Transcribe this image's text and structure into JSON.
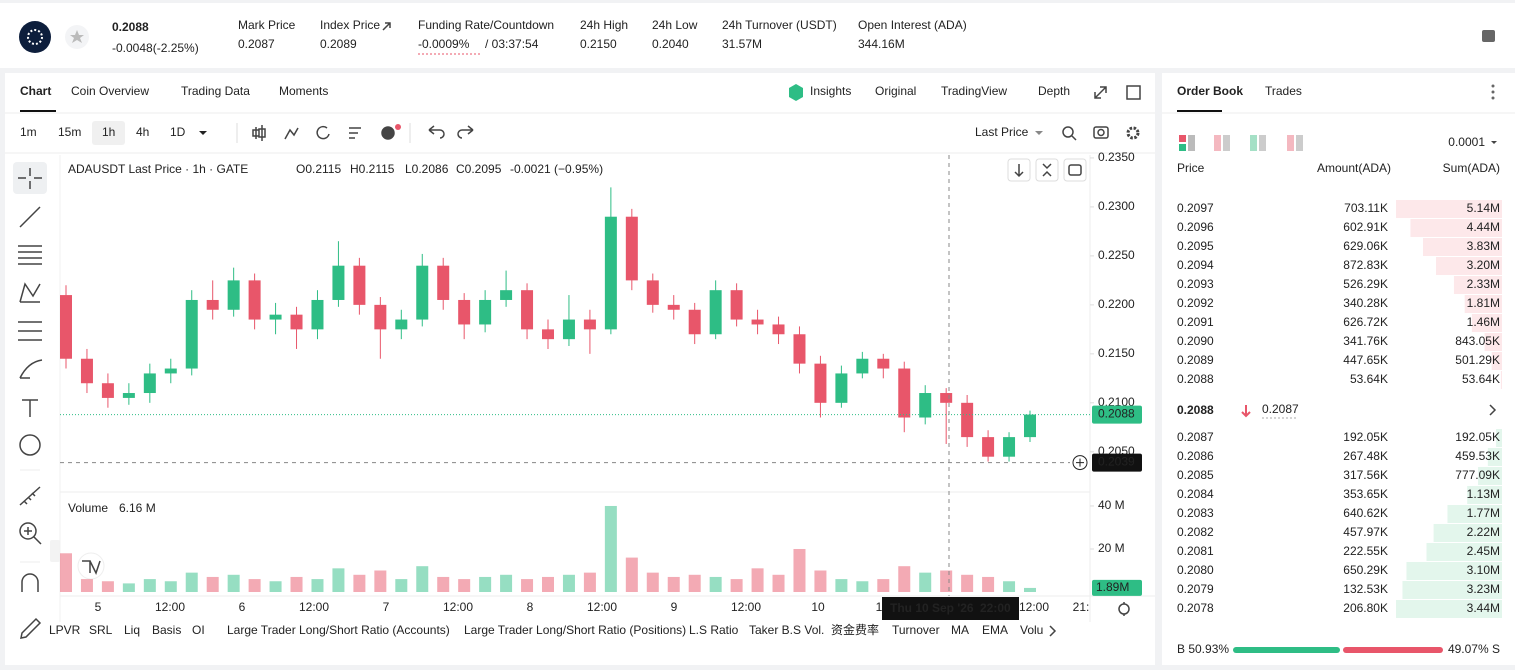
{
  "header": {
    "price": "0.2088",
    "change": "-0.0048(-2.25%)",
    "stats": [
      {
        "label": "Mark Price",
        "value": "0.2087"
      },
      {
        "label": "Index Price",
        "value": "0.2089"
      },
      {
        "label": "Funding Rate/Countdown",
        "value": "-0.0009%",
        "countdown": "/ 03:37:54"
      },
      {
        "label": "24h High",
        "value": "0.2150"
      },
      {
        "label": "24h Low",
        "value": "0.2040"
      },
      {
        "label": "24h Turnover (USDT)",
        "value": "31.57M"
      },
      {
        "label": "Open Interest (ADA)",
        "value": "344.16M"
      }
    ]
  },
  "chart_tabs": [
    "Chart",
    "Coin Overview",
    "Trading Data",
    "Moments"
  ],
  "view_tabs": [
    "Insights",
    "Original",
    "TradingView",
    "Depth"
  ],
  "intervals": [
    "1m",
    "15m",
    "1h",
    "4h",
    "1D"
  ],
  "price_type": "Last Price",
  "chart_data": {
    "type": "candlestick",
    "title": "ADAUSDT Last Price · 1h · GATE",
    "ohlc_legend": [
      "O0.2115",
      "H0.2115",
      "L0.2086",
      "C0.2095",
      "-0.0021 (−0.95%)"
    ],
    "up_color": "#2ebd85",
    "down_color": "#e8566a",
    "open": [
      0.221,
      0.2145,
      0.212,
      0.2105,
      0.211,
      0.213,
      0.2135,
      0.2205,
      0.2195,
      0.2225,
      0.2185,
      0.219,
      0.2175,
      0.2205,
      0.224,
      0.22,
      0.2175,
      0.2185,
      0.224,
      0.2205,
      0.218,
      0.2205,
      0.2215,
      0.2175,
      0.2165,
      0.2185,
      0.2175,
      0.229,
      0.2225,
      0.22,
      0.2195,
      0.217,
      0.2215,
      0.2185,
      0.218,
      0.217,
      0.214,
      0.21,
      0.213,
      0.2145,
      0.2135,
      0.2085,
      0.211,
      0.21,
      0.2065,
      0.2045,
      0.2065
    ],
    "high": [
      0.222,
      0.2155,
      0.213,
      0.212,
      0.214,
      0.2145,
      0.2215,
      0.2225,
      0.2238,
      0.2232,
      0.2202,
      0.2198,
      0.2215,
      0.2265,
      0.2248,
      0.2208,
      0.2195,
      0.2252,
      0.2248,
      0.2212,
      0.2215,
      0.2235,
      0.2222,
      0.2185,
      0.221,
      0.2195,
      0.232,
      0.2298,
      0.2232,
      0.221,
      0.2202,
      0.2225,
      0.2222,
      0.2195,
      0.2188,
      0.2178,
      0.2148,
      0.2138,
      0.2152,
      0.215,
      0.2142,
      0.2118,
      0.2115,
      0.2108,
      0.2072,
      0.207,
      0.2092
    ],
    "low": [
      0.2135,
      0.211,
      0.2095,
      0.2098,
      0.21,
      0.212,
      0.2128,
      0.2185,
      0.2188,
      0.2175,
      0.217,
      0.2155,
      0.2165,
      0.2198,
      0.219,
      0.2145,
      0.2165,
      0.2178,
      0.2195,
      0.2165,
      0.2172,
      0.2198,
      0.2165,
      0.2155,
      0.2158,
      0.215,
      0.217,
      0.2215,
      0.2192,
      0.2185,
      0.216,
      0.2165,
      0.2178,
      0.217,
      0.216,
      0.213,
      0.2085,
      0.2095,
      0.2125,
      0.2125,
      0.207,
      0.2078,
      0.2058,
      0.2055,
      0.204,
      0.204,
      0.206
    ],
    "close": [
      0.2145,
      0.212,
      0.2105,
      0.211,
      0.213,
      0.2135,
      0.2205,
      0.2195,
      0.2225,
      0.2185,
      0.219,
      0.2175,
      0.2205,
      0.224,
      0.22,
      0.2175,
      0.2185,
      0.224,
      0.2205,
      0.218,
      0.2205,
      0.2215,
      0.2175,
      0.2165,
      0.2185,
      0.2175,
      0.229,
      0.2225,
      0.22,
      0.2195,
      0.217,
      0.2215,
      0.2185,
      0.218,
      0.217,
      0.214,
      0.21,
      0.213,
      0.2145,
      0.2135,
      0.2085,
      0.211,
      0.21,
      0.2065,
      0.2045,
      0.2065,
      0.2088
    ],
    "volume": [
      18,
      6,
      5,
      4,
      6,
      5,
      9,
      7,
      8,
      6,
      5,
      7,
      6,
      11,
      8,
      10,
      6,
      12,
      7,
      6,
      7,
      8,
      6,
      7,
      8,
      9,
      40,
      16,
      9,
      7,
      8,
      7,
      6,
      11,
      8,
      20,
      10,
      6,
      5,
      6,
      12,
      9,
      10,
      8,
      7,
      5,
      1.89
    ],
    "ylim": [
      0.2011,
      0.2353
    ],
    "yticks": [
      {
        "value": 0.205,
        "label": "0.2050"
      },
      {
        "value": 0.21,
        "label": "0.2100"
      },
      {
        "value": 0.215,
        "label": "0.2150"
      },
      {
        "value": 0.22,
        "label": "0.2200"
      },
      {
        "value": 0.225,
        "label": "0.2250"
      },
      {
        "value": 0.23,
        "label": "0.2300"
      },
      {
        "value": 0.235,
        "label": "0.2350"
      }
    ],
    "volume_label": "Volume",
    "volume_value": "6.16 M",
    "last_volume_label": "1.89M",
    "vlim": [
      0,
      45.1
    ],
    "vticks": [
      {
        "value": 20,
        "label": "20 M"
      },
      {
        "value": 40,
        "label": "40 M"
      }
    ],
    "xtick_labels": [
      "5",
      "12:00",
      "6",
      "12:00",
      "7",
      "12:00",
      "8",
      "12:00",
      "9",
      "12:00",
      "10",
      "1",
      "12:00",
      "21:"
    ],
    "crosshair": {
      "value": 0.2039,
      "time": "Thu 10 Sep '26",
      "hour": "22:00"
    }
  },
  "indicators": [
    "LPVR",
    "SRL",
    "Liq",
    "Basis",
    "OI",
    "Large Trader Long/Short Ratio (Accounts)",
    "Large Trader Long/Short Ratio (Positions)",
    "L.S Ratio",
    "Taker B.S Vol.",
    "资金费率",
    "Turnover",
    "MA",
    "EMA",
    "Volu"
  ],
  "order_book": {
    "tabs": [
      "Order Book",
      "Trades"
    ],
    "tick_size": "0.0001",
    "headers": [
      "Price",
      "Amount(ADA)",
      "Sum(ADA)"
    ],
    "asks": [
      [
        "0.2097",
        "703.11K",
        "5.14M"
      ],
      [
        "0.2096",
        "602.91K",
        "4.44M"
      ],
      [
        "0.2095",
        "629.06K",
        "3.83M"
      ],
      [
        "0.2094",
        "872.83K",
        "3.20M"
      ],
      [
        "0.2093",
        "526.29K",
        "2.33M"
      ],
      [
        "0.2092",
        "340.28K",
        "1.81M"
      ],
      [
        "0.2091",
        "626.72K",
        "1.46M"
      ],
      [
        "0.2090",
        "341.76K",
        "843.05K"
      ],
      [
        "0.2089",
        "447.65K",
        "501.29K"
      ],
      [
        "0.2088",
        "53.64K",
        "53.64K"
      ]
    ],
    "mid_price": "0.2088",
    "mark_price": "0.2087",
    "bids": [
      [
        "0.2087",
        "192.05K",
        "192.05K"
      ],
      [
        "0.2086",
        "267.48K",
        "459.53K"
      ],
      [
        "0.2085",
        "317.56K",
        "777.09K"
      ],
      [
        "0.2084",
        "353.65K",
        "1.13M"
      ],
      [
        "0.2083",
        "640.62K",
        "1.77M"
      ],
      [
        "0.2082",
        "457.97K",
        "2.22M"
      ],
      [
        "0.2081",
        "222.55K",
        "2.45M"
      ],
      [
        "0.2080",
        "650.29K",
        "3.10M"
      ],
      [
        "0.2079",
        "132.53K",
        "3.23M"
      ],
      [
        "0.2078",
        "206.80K",
        "3.44M"
      ]
    ],
    "buy_ratio": "B 50.93%",
    "sell_ratio": "49.07% S"
  }
}
